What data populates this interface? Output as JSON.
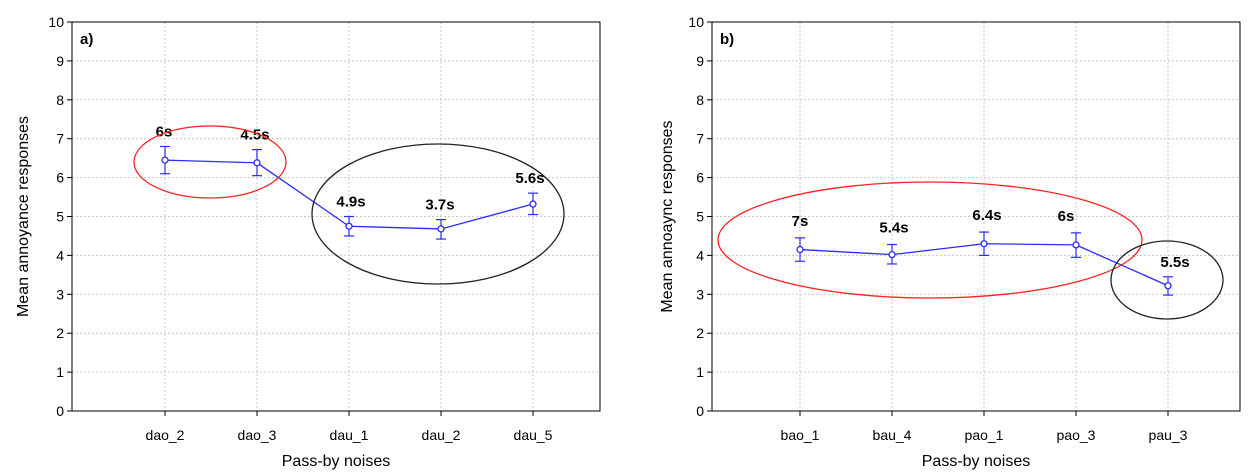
{
  "chart_data": [
    {
      "type": "line",
      "panel_label": "a)",
      "xlabel": "Pass-by noises",
      "ylabel": "Mean annoyance responses",
      "ylim": [
        0,
        10
      ],
      "yticks": [
        0,
        1,
        2,
        3,
        4,
        5,
        6,
        7,
        8,
        9,
        10
      ],
      "categories": [
        "dao_2",
        "dao_3",
        "dau_1",
        "dau_2",
        "dau_5"
      ],
      "series": [
        {
          "color": "#2a2aff",
          "values": [
            6.45,
            6.38,
            4.75,
            4.68,
            5.32
          ],
          "error_low": [
            6.1,
            6.05,
            4.5,
            4.42,
            5.05
          ],
          "error_high": [
            6.8,
            6.72,
            5.0,
            4.92,
            5.6
          ]
        }
      ],
      "annotations": [
        "6s",
        "4.5s",
        "4.9s",
        "3.7s",
        "5.6s"
      ],
      "groups": [
        {
          "color": "#ff2020",
          "members": [
            "dao_2",
            "dao_3"
          ]
        },
        {
          "color": "#222222",
          "members": [
            "dau_1",
            "dau_2",
            "dau_5"
          ]
        }
      ],
      "grid": true
    },
    {
      "type": "line",
      "panel_label": "b)",
      "xlabel": "Pass-by noises",
      "ylabel": "Mean annoaync responses",
      "ylim": [
        0,
        10
      ],
      "yticks": [
        0,
        1,
        2,
        3,
        4,
        5,
        6,
        7,
        8,
        9,
        10
      ],
      "categories": [
        "bao_1",
        "bau_4",
        "pao_1",
        "pao_3",
        "pau_3"
      ],
      "series": [
        {
          "color": "#2a2aff",
          "values": [
            4.15,
            4.02,
            4.3,
            4.27,
            3.22
          ],
          "error_low": [
            3.85,
            3.78,
            4.0,
            3.95,
            2.98
          ],
          "error_high": [
            4.45,
            4.28,
            4.6,
            4.58,
            3.45
          ]
        }
      ],
      "annotations": [
        "7s",
        "5.4s",
        "6.4s",
        "6s",
        "5.5s"
      ],
      "groups": [
        {
          "color": "#ff2020",
          "members": [
            "bao_1",
            "bau_4",
            "pao_1",
            "pao_3"
          ]
        },
        {
          "color": "#222222",
          "members": [
            "pau_3"
          ]
        }
      ],
      "grid": true
    }
  ]
}
